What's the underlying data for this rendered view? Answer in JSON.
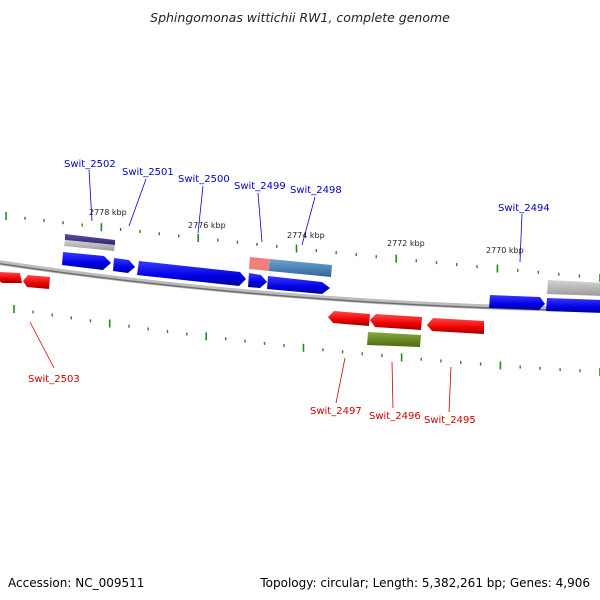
{
  "title": "Sphingomonas wittichii RW1, complete genome",
  "footer": {
    "accession": "Accession: NC_009511",
    "stats": "Topology: circular; Length: 5,382,261 bp; Genes: 4,906"
  },
  "colors": {
    "forward_gene": "#0000ee",
    "reverse_gene": "#ee0000",
    "forward_label": "#0000cc",
    "reverse_label": "#cc0000",
    "backbone": "#888888",
    "tick": "#228822",
    "feature_purple": "#4a3f8c",
    "feature_steelblue": "#4682b4",
    "feature_salmon": "#f08080",
    "feature_olive": "#6b8e23",
    "feature_gray": "#a9a9a9"
  },
  "scale": {
    "kbp_labels": [
      "2778 kbp",
      "2776 kbp",
      "2774 kbp",
      "2772 kbp",
      "2770 kbp"
    ]
  },
  "forward_labels": [
    "Swit_2502",
    "Swit_2501",
    "Swit_2500",
    "Swit_2499",
    "Swit_2498",
    "Swit_2494"
  ],
  "reverse_labels": [
    "Swit_2503",
    "Swit_2497",
    "Swit_2496",
    "Swit_2495"
  ]
}
